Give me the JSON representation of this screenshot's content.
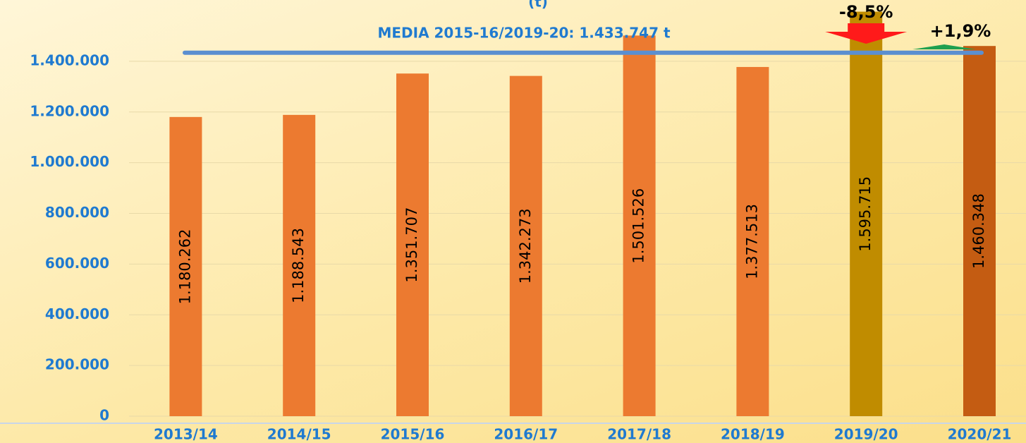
{
  "chart_data": {
    "type": "bar",
    "subtitle": "(t)",
    "categories": [
      "2013/14",
      "2014/15",
      "2015/16",
      "2016/17",
      "2017/18",
      "2018/19",
      "2019/20",
      "2020/21"
    ],
    "values": [
      1180262,
      1188543,
      1351707,
      1342273,
      1501526,
      1377513,
      1595715,
      1460348
    ],
    "value_labels": [
      "1.180.262",
      "1.188.543",
      "1.351.707",
      "1.342.273",
      "1.501.526",
      "1.377.513",
      "1.595.715",
      "1.460.348"
    ],
    "colors": [
      "#ec7a30",
      "#ec7a30",
      "#ec7a30",
      "#ec7a30",
      "#ec7a30",
      "#ec7a30",
      "#c08c00",
      "#c45c12"
    ],
    "ylim": [
      0,
      1600000
    ],
    "yticks": [
      0,
      {
        "value": 200000,
        "label": "200.000"
      },
      {
        "value": 400000,
        "label": "400.000"
      },
      {
        "value": 600000,
        "label": "600.000"
      },
      {
        "value": 800000,
        "label": "800.000"
      },
      {
        "value": 1000000,
        "label": "1.000.000"
      },
      {
        "value": 1200000,
        "label": "1.200.000"
      },
      {
        "value": 1400000,
        "label": "1.400.000"
      }
    ],
    "grid": true,
    "average": {
      "value": 1433747,
      "label": "MEDIA 2015-16/2019-20: 1.433.747 t",
      "color": "#5b8fd0"
    },
    "annotations": [
      {
        "text": "-8,5%",
        "category": 6,
        "direction": "down",
        "color": "#ff1a1a"
      },
      {
        "text": "+1,9%",
        "category": 7,
        "direction": "up",
        "color": "#1fa050"
      }
    ]
  }
}
